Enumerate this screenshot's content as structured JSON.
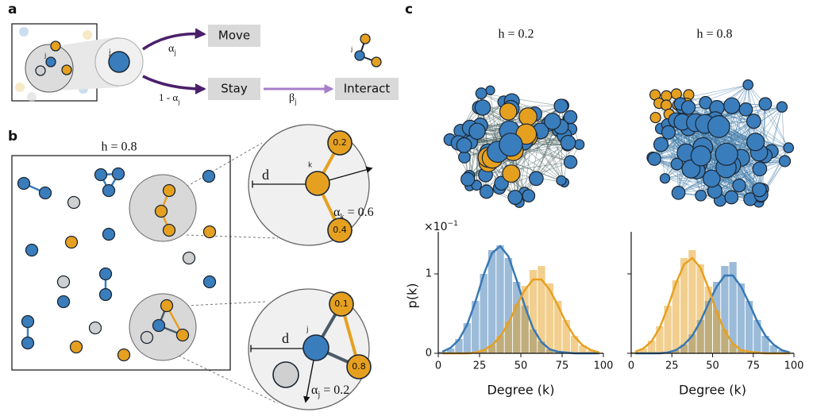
{
  "panel_a": {
    "label": "a",
    "inset_node": "j",
    "zoom_node": "j",
    "icon_node": "j",
    "move": "Move",
    "stay": "Stay",
    "interact": "Interact",
    "move_rate": {
      "symbol": "α",
      "sub": "j"
    },
    "stay_rate": {
      "prefix": "1 - ",
      "symbol": "α",
      "sub": "j"
    },
    "interact_rate": {
      "symbol": "β",
      "sub": "j"
    }
  },
  "panel_b": {
    "label": "b",
    "title": "h = 0.8",
    "top": {
      "distance": "d",
      "node": "k",
      "weights": [
        "0.2",
        "0.4"
      ],
      "rate": {
        "symbol": "α",
        "sub": "k",
        "value": " = 0.6"
      }
    },
    "bottom": {
      "distance": "d",
      "node": "j",
      "weights": [
        "0.1",
        "0.8"
      ],
      "rate": {
        "symbol": "α",
        "sub": "j",
        "value": " = 0.2"
      }
    }
  },
  "panel_c": {
    "label": "c",
    "titles": [
      "h = 0.2",
      "h = 0.8"
    ]
  },
  "chart_data": [
    {
      "type": "histogram",
      "xlabel": "Degree (k)",
      "ylabel": "p(k)",
      "y_multiplier": {
        "base": "×10",
        "exp": "−1"
      },
      "ytick_labels": true,
      "bins": [
        0,
        5,
        10,
        15,
        20,
        25,
        30,
        35,
        40,
        45,
        50,
        55,
        60,
        65,
        70,
        75,
        80,
        85,
        90,
        95,
        100
      ],
      "fit_x": [
        2.5,
        7.5,
        12.5,
        17.5,
        22.5,
        27.5,
        32.5,
        37.5,
        42.5,
        47.5,
        52.5,
        57.5,
        62.5,
        67.5,
        72.5,
        77.5,
        82.5,
        87.5,
        92.5,
        97.5
      ],
      "xlim": [
        0,
        100
      ],
      "xticks": [
        0,
        25,
        50,
        75,
        100
      ],
      "ylim": [
        0,
        1.45
      ],
      "yticks": [
        0,
        1
      ],
      "series": [
        {
          "color": "#3878b4",
          "values": [
            0.02,
            0.06,
            0.18,
            0.38,
            0.66,
            1.0,
            1.3,
            1.36,
            1.2,
            0.9,
            0.6,
            0.3,
            0.15,
            0.05,
            0.02,
            0.01,
            0,
            0,
            0,
            0
          ],
          "fit": [
            0.02,
            0.07,
            0.17,
            0.36,
            0.65,
            0.99,
            1.26,
            1.35,
            1.22,
            0.92,
            0.59,
            0.31,
            0.14,
            0.05,
            0.02,
            0.01,
            0,
            0,
            0,
            0
          ]
        },
        {
          "color": "#e6a020",
          "values": [
            0,
            0,
            0,
            0,
            0.01,
            0.04,
            0.1,
            0.22,
            0.4,
            0.62,
            0.85,
            1.05,
            1.1,
            0.88,
            0.66,
            0.42,
            0.22,
            0.1,
            0.04,
            0.01
          ],
          "fit": [
            0,
            0,
            0,
            0,
            0.01,
            0.04,
            0.1,
            0.21,
            0.38,
            0.6,
            0.8,
            0.93,
            0.93,
            0.8,
            0.6,
            0.38,
            0.21,
            0.1,
            0.04,
            0.01
          ]
        }
      ]
    },
    {
      "type": "histogram",
      "xlabel": "Degree (k)",
      "ytick_labels": false,
      "bins": [
        0,
        5,
        10,
        15,
        20,
        25,
        30,
        35,
        40,
        45,
        50,
        55,
        60,
        65,
        70,
        75,
        80,
        85,
        90,
        95,
        100
      ],
      "fit_x": [
        2.5,
        7.5,
        12.5,
        17.5,
        22.5,
        27.5,
        32.5,
        37.5,
        42.5,
        47.5,
        52.5,
        57.5,
        62.5,
        67.5,
        72.5,
        77.5,
        82.5,
        87.5,
        92.5,
        97.5
      ],
      "xlim": [
        0,
        100
      ],
      "xticks": [
        0,
        25,
        50,
        75,
        100
      ],
      "ylim": [
        0,
        1.45
      ],
      "yticks": [
        0,
        1
      ],
      "series": [
        {
          "color": "#3878b4",
          "values": [
            0,
            0,
            0,
            0,
            0.01,
            0.04,
            0.11,
            0.24,
            0.42,
            0.66,
            0.9,
            1.1,
            1.15,
            0.88,
            0.66,
            0.42,
            0.22,
            0.1,
            0.04,
            0.01
          ],
          "fit": [
            0,
            0,
            0,
            0,
            0.01,
            0.04,
            0.11,
            0.22,
            0.4,
            0.63,
            0.84,
            0.98,
            0.98,
            0.84,
            0.63,
            0.4,
            0.22,
            0.11,
            0.04,
            0.01
          ]
        },
        {
          "color": "#e6a020",
          "values": [
            0.02,
            0.06,
            0.16,
            0.34,
            0.6,
            0.92,
            1.2,
            1.3,
            1.12,
            0.84,
            0.54,
            0.3,
            0.12,
            0.04,
            0.02,
            0.01,
            0,
            0,
            0,
            0
          ],
          "fit": [
            0.02,
            0.06,
            0.15,
            0.32,
            0.58,
            0.88,
            1.12,
            1.2,
            1.08,
            0.82,
            0.52,
            0.28,
            0.12,
            0.04,
            0.02,
            0.01,
            0,
            0,
            0,
            0
          ]
        }
      ]
    }
  ]
}
